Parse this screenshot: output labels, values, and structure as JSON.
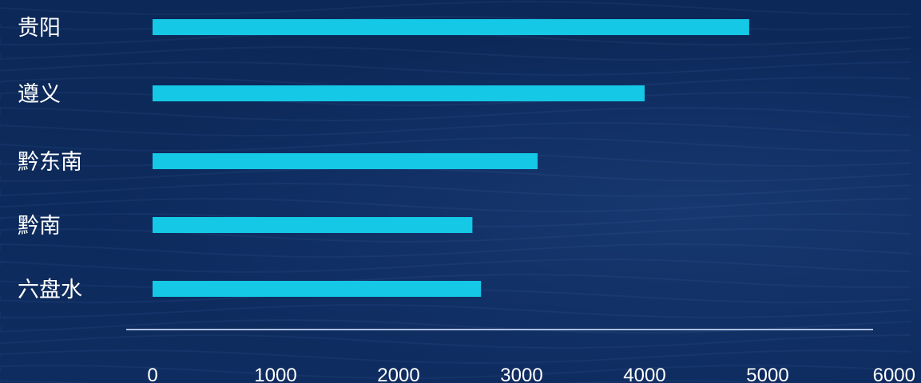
{
  "colors": {
    "background": "#0d2a5c",
    "bar": "#14c8e6",
    "axis": "#aebfdd",
    "text": "#ffffff"
  },
  "chart_data": {
    "type": "bar",
    "orientation": "horizontal",
    "title": "",
    "xlabel": "",
    "ylabel": "",
    "categories": [
      "贵阳",
      "遵义",
      "黔东南",
      "黔南",
      "六盘水"
    ],
    "values": [
      4850,
      4000,
      3130,
      2600,
      2670
    ],
    "xlim": [
      0,
      6000
    ],
    "xticks": [
      "0",
      "1000",
      "2000",
      "3000",
      "4000",
      "5000",
      "6000"
    ],
    "grid": false,
    "legend": "none"
  }
}
